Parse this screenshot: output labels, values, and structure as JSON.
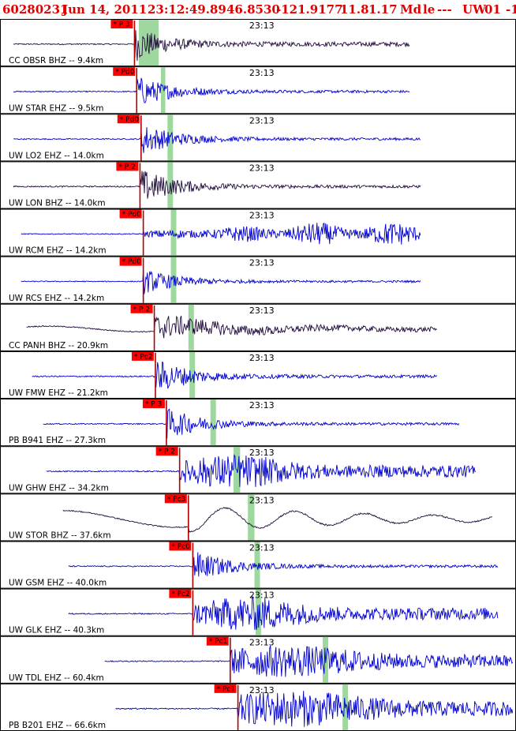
{
  "header": {
    "event_id": "60280231",
    "date": "Jun 14, 2011",
    "time": "23:12:49.89",
    "lat": "46.8530",
    "lon": "-121.9177",
    "depth": "11.8",
    "magnitude": "1.17",
    "mag_type": "Md",
    "event_type": "le",
    "dashes": "---",
    "network": "UW",
    "version": "01",
    "tail": "-1"
  },
  "colors": {
    "header_text": "#e00000",
    "trace_velocity": "#0000cc",
    "trace_broadband": "#200a3c",
    "pick_flag": "#ff0000",
    "pick_line": "#b00000",
    "green_band": "#9fd89f",
    "border": "#000000"
  },
  "chart_data": {
    "type": "line",
    "time_axis_label": "23:13",
    "x_unit": "seconds after 23:12:49",
    "x_range": [
      0,
      38
    ],
    "time_mark_seconds": 22,
    "traces": [
      {
        "label": "CC OBSR BHZ -- 9.4km",
        "station": "OBSR",
        "color": "#200a3c",
        "phase": "P 3",
        "pick_s": 11.0,
        "green_s": [
          11.4,
          13.2
        ],
        "trace_start_s": 0.0,
        "trace_end_s": 36.0,
        "style": "ramp",
        "amp": 0.85
      },
      {
        "label": "UW STAR EHZ -- 9.5km",
        "station": "STAR",
        "color": "#0000cc",
        "phase": "Pd0",
        "pick_s": 11.2,
        "green_s": [
          13.4,
          13.8
        ],
        "trace_start_s": 0.0,
        "trace_end_s": 36.0,
        "style": "quick",
        "amp": 0.75
      },
      {
        "label": "UW LO2 EHZ -- 14.0km",
        "station": "LO2",
        "color": "#0000cc",
        "phase": "Pd0",
        "pick_s": 11.6,
        "green_s": [
          14.0,
          14.5
        ],
        "trace_start_s": 0.0,
        "trace_end_s": 37.0,
        "style": "quick",
        "amp": 0.75
      },
      {
        "label": "UW LON BHZ -- 14.0km",
        "station": "LON",
        "color": "#200a3c",
        "phase": "P 2",
        "pick_s": 11.5,
        "green_s": [
          14.0,
          14.5
        ],
        "trace_start_s": 0.0,
        "trace_end_s": 37.0,
        "style": "quick",
        "amp": 0.85
      },
      {
        "label": "UW RCM EHZ -- 14.2km",
        "station": "RCM",
        "color": "#0000cc",
        "phase": "Pd0",
        "pick_s": 11.8,
        "green_s": [
          14.3,
          14.8
        ],
        "trace_start_s": 0.7,
        "trace_end_s": 37.0,
        "style": "grow",
        "amp": 0.55
      },
      {
        "label": "UW RCS EHZ -- 14.2km",
        "station": "RCS",
        "color": "#0000cc",
        "phase": "Pd0",
        "pick_s": 11.8,
        "green_s": [
          14.3,
          14.8
        ],
        "trace_start_s": 0.7,
        "trace_end_s": 37.0,
        "style": "quick",
        "amp": 0.6
      },
      {
        "label": "CC PANH BHZ -- 20.9km",
        "station": "PANH",
        "color": "#200a3c",
        "phase": "P 2",
        "pick_s": 12.8,
        "green_s": [
          15.9,
          16.4
        ],
        "trace_start_s": 1.2,
        "trace_end_s": 38.5,
        "style": "broad",
        "amp": 0.7
      },
      {
        "label": "UW FMW EHZ -- 21.2km",
        "station": "FMW",
        "color": "#0000cc",
        "phase": "Pc2",
        "pick_s": 12.9,
        "green_s": [
          16.0,
          16.5
        ],
        "trace_start_s": 1.7,
        "trace_end_s": 38.5,
        "style": "quick",
        "amp": 0.85
      },
      {
        "label": "PB B941 EHZ -- 27.3km",
        "station": "B941",
        "color": "#0000cc",
        "phase": "P 3",
        "pick_s": 13.9,
        "green_s": [
          17.9,
          18.4
        ],
        "trace_start_s": 2.7,
        "trace_end_s": 40.5,
        "style": "quick",
        "amp": 0.75
      },
      {
        "label": "UW GHW EHZ -- 34.2km",
        "station": "GHW",
        "color": "#0000cc",
        "phase": "P 2",
        "pick_s": 15.1,
        "green_s": [
          20.0,
          20.6
        ],
        "trace_start_s": 3.0,
        "trace_end_s": 42.0,
        "style": "mid",
        "amp": 0.8
      },
      {
        "label": "UW STOR BHZ -- 37.6km",
        "station": "STOR",
        "color": "#200a3c",
        "phase": "Pc3",
        "pick_s": 15.9,
        "green_s": [
          21.3,
          21.9
        ],
        "trace_start_s": 4.5,
        "trace_end_s": 43.5,
        "style": "long",
        "amp": 0.7
      },
      {
        "label": "UW GSM EHZ -- 40.0km",
        "station": "GSM",
        "color": "#0000cc",
        "phase": "Pc0",
        "pick_s": 16.3,
        "green_s": [
          21.9,
          22.4
        ],
        "trace_start_s": 5.0,
        "trace_end_s": 44.0,
        "style": "quick",
        "amp": 0.75
      },
      {
        "label": "UW GLK EHZ -- 40.3km",
        "station": "GLK",
        "color": "#0000cc",
        "phase": "Pc2",
        "pick_s": 16.3,
        "green_s": [
          22.0,
          22.5
        ],
        "trace_start_s": 5.0,
        "trace_end_s": 44.0,
        "style": "mid",
        "amp": 0.8
      },
      {
        "label": "UW TDL EHZ -- 60.4km",
        "station": "TDL",
        "color": "#0000cc",
        "phase": "Pc1",
        "pick_s": 19.7,
        "green_s": [
          28.1,
          28.6
        ],
        "trace_start_s": 8.3,
        "trace_end_s": 50.0,
        "style": "noisy",
        "amp": 0.75
      },
      {
        "label": "PB B201 EHZ -- 66.6km",
        "station": "B201",
        "color": "#0000cc",
        "phase": "Pc1",
        "pick_s": 20.4,
        "green_s": [
          29.9,
          30.4
        ],
        "trace_start_s": 9.3,
        "trace_end_s": 50.5,
        "style": "noisy",
        "amp": 0.85
      }
    ]
  }
}
